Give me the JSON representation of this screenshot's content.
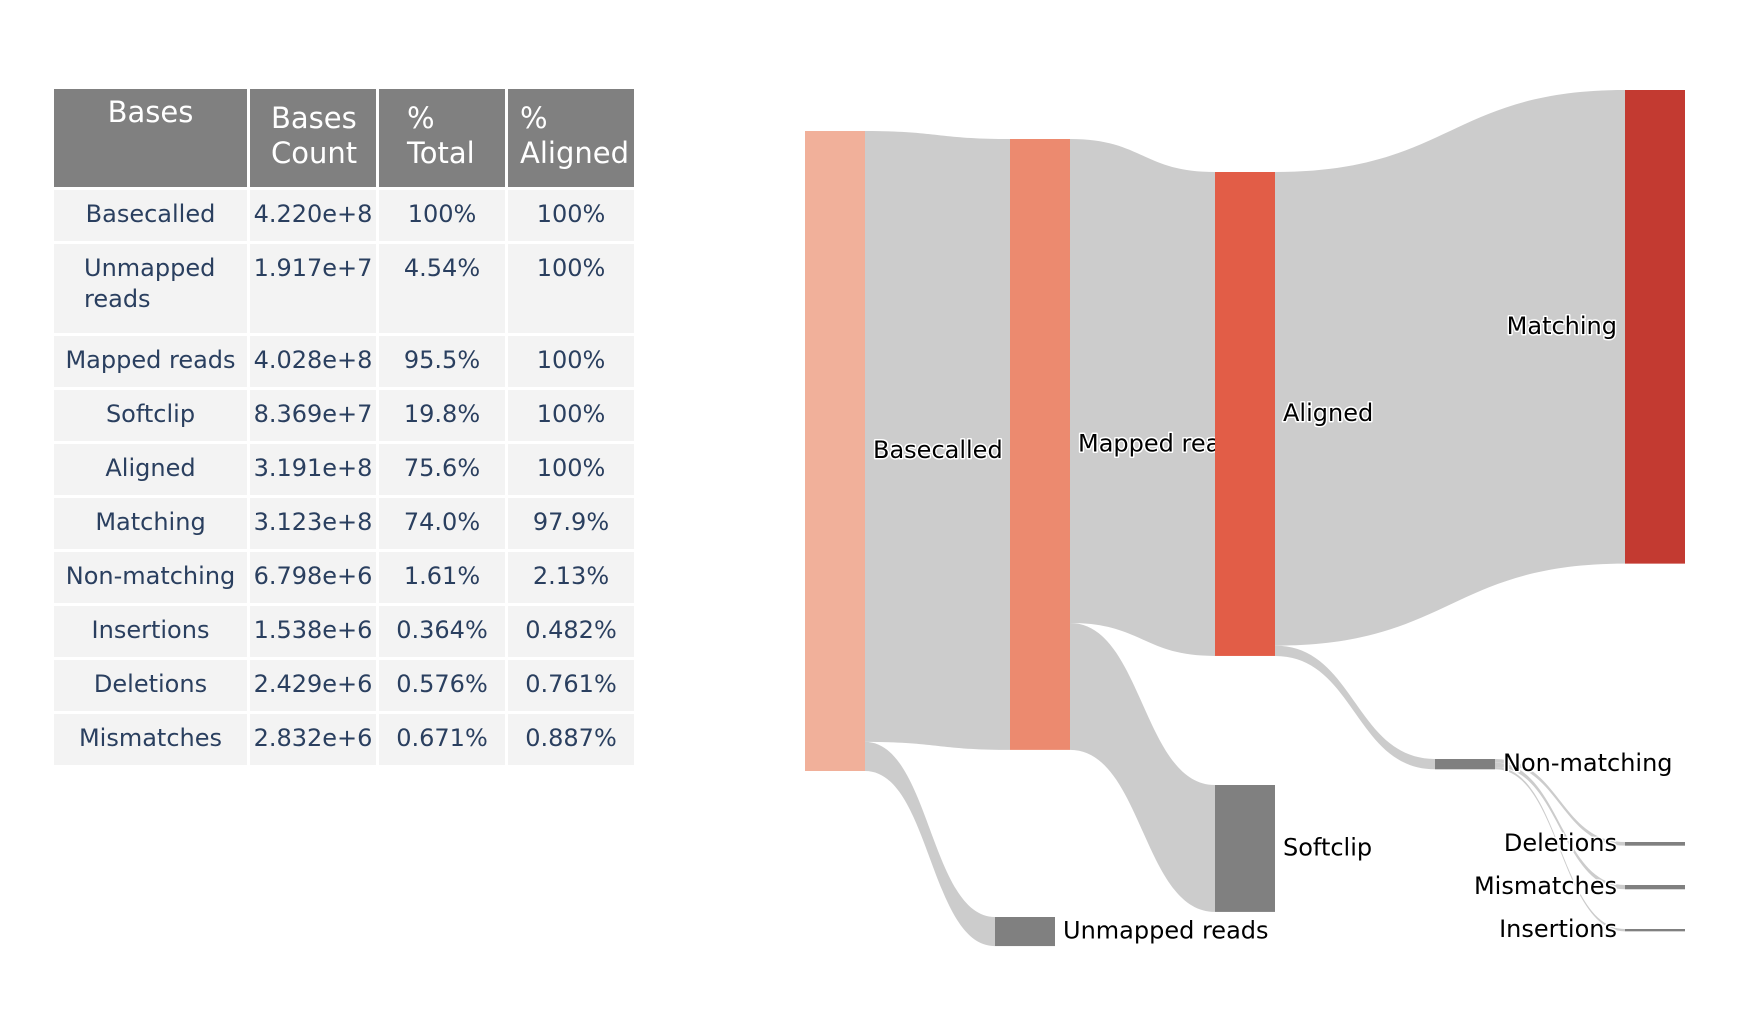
{
  "table": {
    "headers": [
      [
        "Bases"
      ],
      [
        "Bases",
        "Count"
      ],
      [
        "%",
        "Total"
      ],
      [
        "%",
        "Aligned"
      ]
    ],
    "rows": [
      {
        "label": [
          "Basecalled"
        ],
        "count": "4.220e+8",
        "total": "100%",
        "aligned": "100%"
      },
      {
        "label": [
          "Unmapped",
          "reads"
        ],
        "count": "1.917e+7",
        "total": "4.54%",
        "aligned": "100%"
      },
      {
        "label": [
          "Mapped reads"
        ],
        "count": "4.028e+8",
        "total": "95.5%",
        "aligned": "100%"
      },
      {
        "label": [
          "Softclip"
        ],
        "count": "8.369e+7",
        "total": "19.8%",
        "aligned": "100%"
      },
      {
        "label": [
          "Aligned"
        ],
        "count": "3.191e+8",
        "total": "75.6%",
        "aligned": "100%"
      },
      {
        "label": [
          "Matching"
        ],
        "count": "3.123e+8",
        "total": "74.0%",
        "aligned": "97.9%"
      },
      {
        "label": [
          "Non-matching"
        ],
        "count": "6.798e+6",
        "total": "1.61%",
        "aligned": "2.13%"
      },
      {
        "label": [
          "Insertions"
        ],
        "count": "1.538e+6",
        "total": "0.364%",
        "aligned": "0.482%"
      },
      {
        "label": [
          "Deletions"
        ],
        "count": "2.429e+6",
        "total": "0.576%",
        "aligned": "0.761%"
      },
      {
        "label": [
          "Mismatches"
        ],
        "count": "2.832e+6",
        "total": "0.671%",
        "aligned": "0.887%"
      }
    ]
  },
  "chart_data": {
    "type": "sankey",
    "nodes": [
      {
        "id": "Basecalled",
        "label": "Basecalled",
        "value": 422000000,
        "color": "#f1b09a"
      },
      {
        "id": "Unmapped reads",
        "label": "Unmapped reads",
        "value": 19170000,
        "color": "#808080"
      },
      {
        "id": "Mapped reads",
        "label": "Mapped reads",
        "value": 402800000,
        "color": "#ec8a6f"
      },
      {
        "id": "Softclip",
        "label": "Softclip",
        "value": 83690000,
        "color": "#808080"
      },
      {
        "id": "Aligned",
        "label": "Aligned",
        "value": 319100000,
        "color": "#e25d47"
      },
      {
        "id": "Matching",
        "label": "Matching",
        "value": 312300000,
        "color": "#c33a31"
      },
      {
        "id": "Non-matching",
        "label": "Non-matching",
        "value": 6798000,
        "color": "#808080"
      },
      {
        "id": "Deletions",
        "label": "Deletions",
        "value": 2429000,
        "color": "#808080"
      },
      {
        "id": "Mismatches",
        "label": "Mismatches",
        "value": 2832000,
        "color": "#808080"
      },
      {
        "id": "Insertions",
        "label": "Insertions",
        "value": 1538000,
        "color": "#808080"
      }
    ],
    "links": [
      {
        "source": "Basecalled",
        "target": "Mapped reads",
        "value": 402800000
      },
      {
        "source": "Basecalled",
        "target": "Unmapped reads",
        "value": 19170000
      },
      {
        "source": "Mapped reads",
        "target": "Aligned",
        "value": 319100000
      },
      {
        "source": "Mapped reads",
        "target": "Softclip",
        "value": 83690000
      },
      {
        "source": "Aligned",
        "target": "Matching",
        "value": 312300000
      },
      {
        "source": "Aligned",
        "target": "Non-matching",
        "value": 6798000
      },
      {
        "source": "Non-matching",
        "target": "Deletions",
        "value": 2429000
      },
      {
        "source": "Non-matching",
        "target": "Mismatches",
        "value": 2832000
      },
      {
        "source": "Non-matching",
        "target": "Insertions",
        "value": 1538000
      }
    ],
    "link_color": "#cccccc"
  }
}
